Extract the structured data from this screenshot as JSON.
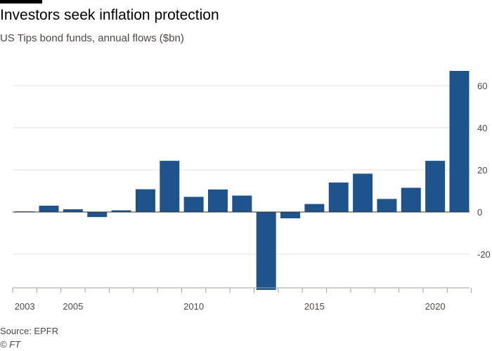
{
  "header": {
    "title": "Investors seek inflation protection",
    "subtitle": "US Tips bond funds, annual flows ($bn)"
  },
  "footer": {
    "source": "Source: EPFR",
    "credit": "© FT"
  },
  "colors": {
    "bar": "#1e538b",
    "grid": "#e6e1dc",
    "axis": "#33302e",
    "text": "#4d4845"
  },
  "chart_data": {
    "type": "bar",
    "title": "Investors seek inflation protection",
    "subtitle": "US Tips bond funds, annual flows ($bn)",
    "xlabel": "",
    "ylabel": "",
    "categories": [
      "2003",
      "2004",
      "2005",
      "2006",
      "2007",
      "2008",
      "2009",
      "2010",
      "2011",
      "2012",
      "2013",
      "2014",
      "2015",
      "2016",
      "2017",
      "2018",
      "2019",
      "2020",
      "2021"
    ],
    "values": [
      0.3,
      3,
      1.3,
      -2.4,
      0.8,
      10.8,
      24.3,
      7.2,
      10.7,
      7.8,
      -37,
      -3,
      3.8,
      14,
      18.2,
      6.2,
      11.5,
      24.3,
      67
    ],
    "x_tick_labels": [
      "2003",
      "2005",
      "2010",
      "2015",
      "2020"
    ],
    "y_ticks": [
      60,
      40,
      20,
      0,
      -20
    ],
    "y_tick_labels": [
      "60",
      "40",
      "20",
      "0",
      "-20"
    ],
    "ylim": [
      -37,
      67
    ],
    "grid": true,
    "y_axis_side": "right"
  }
}
